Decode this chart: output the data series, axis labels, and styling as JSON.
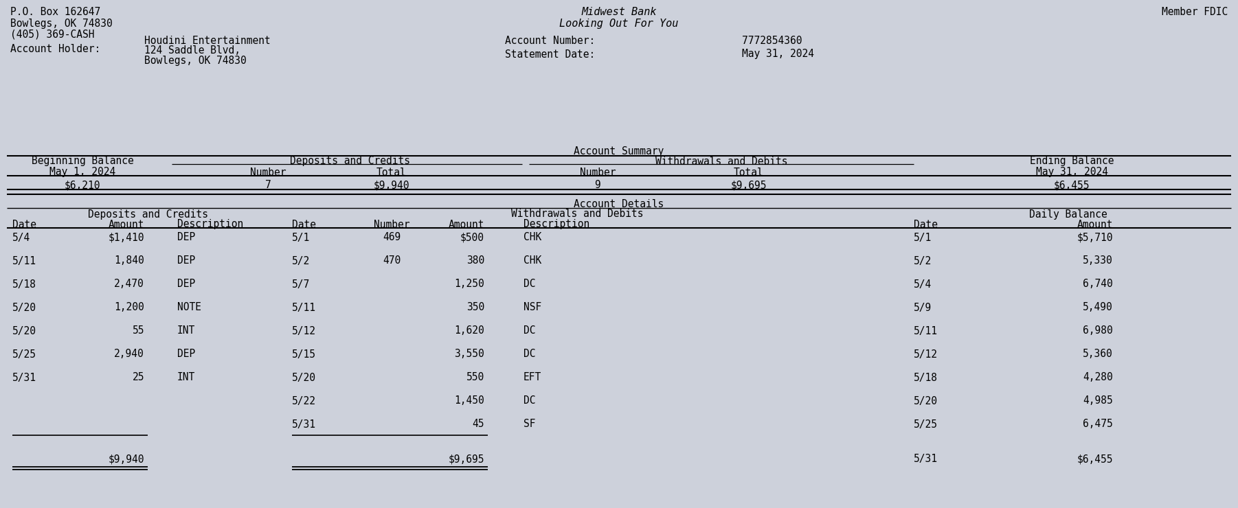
{
  "bg_color": "#cdd1db",
  "text_color": "#000000",
  "header": {
    "left_lines": [
      "P.O. Box 162647",
      "Bowlegs, OK 74830",
      "(405) 369-CASH"
    ],
    "center_lines": [
      "Midwest Bank",
      "Looking Out For You"
    ],
    "right_line": "Member FDIC",
    "account_holder_label": "Account Holder:",
    "account_holder_lines": [
      "Houdini Entertainment",
      "124 Saddle Blvd,",
      "Bowlegs, OK 74830"
    ],
    "account_number_label": "Account Number:",
    "account_number_value": "7772854360",
    "statement_date_label": "Statement Date:",
    "statement_date_value": "May 31, 2024"
  },
  "account_summary": {
    "title": "Account Summary",
    "beg_balance_label": "Beginning Balance",
    "beg_balance_date": "May 1, 2024",
    "beg_balance_value": "$6,210",
    "dep_credits_label": "Deposits and Credits",
    "dep_number": "7",
    "dep_total": "$9,940",
    "wd_debits_label": "Withdrawals and Debits",
    "wd_number": "9",
    "wd_total": "$9,695",
    "end_balance_label": "Ending Balance",
    "end_balance_date": "May 31, 2024",
    "end_balance_value": "$6,455"
  },
  "account_details": {
    "title": "Account Details",
    "deposits_section": "Deposits and Credits",
    "withdrawals_section": "Withdrawals and Debits",
    "daily_section": "Daily Balance",
    "col_headers": [
      "Date",
      "Amount",
      "Description",
      "Date",
      "Number",
      "Amount",
      "Description",
      "Date",
      "Amount"
    ],
    "deposits": [
      [
        "5/4",
        "$1,410",
        "DEP"
      ],
      [
        "5/11",
        "1,840",
        "DEP"
      ],
      [
        "5/18",
        "2,470",
        "DEP"
      ],
      [
        "5/20",
        "1,200",
        "NOTE"
      ],
      [
        "5/20",
        "55",
        "INT"
      ],
      [
        "5/25",
        "2,940",
        "DEP"
      ],
      [
        "5/31",
        "25",
        "INT"
      ]
    ],
    "dep_total": "$9,940",
    "withdrawals": [
      [
        "5/1",
        "469",
        "$500",
        "CHK"
      ],
      [
        "5/2",
        "470",
        "380",
        "CHK"
      ],
      [
        "5/7",
        "",
        "1,250",
        "DC"
      ],
      [
        "5/11",
        "",
        "350",
        "NSF"
      ],
      [
        "5/12",
        "",
        "1,620",
        "DC"
      ],
      [
        "5/15",
        "",
        "3,550",
        "DC"
      ],
      [
        "5/20",
        "",
        "550",
        "EFT"
      ],
      [
        "5/22",
        "",
        "1,450",
        "DC"
      ],
      [
        "5/31",
        "",
        "45",
        "SF"
      ]
    ],
    "wd_total": "$9,695",
    "daily_balance": [
      [
        "5/1",
        "$5,710"
      ],
      [
        "5/2",
        "5,330"
      ],
      [
        "5/4",
        "6,740"
      ],
      [
        "5/9",
        "5,490"
      ],
      [
        "5/11",
        "6,980"
      ],
      [
        "5/12",
        "5,360"
      ],
      [
        "5/18",
        "4,280"
      ],
      [
        "5/20",
        "4,985"
      ],
      [
        "5/25",
        "6,475"
      ],
      [
        "5/31",
        "$6,455"
      ]
    ]
  }
}
